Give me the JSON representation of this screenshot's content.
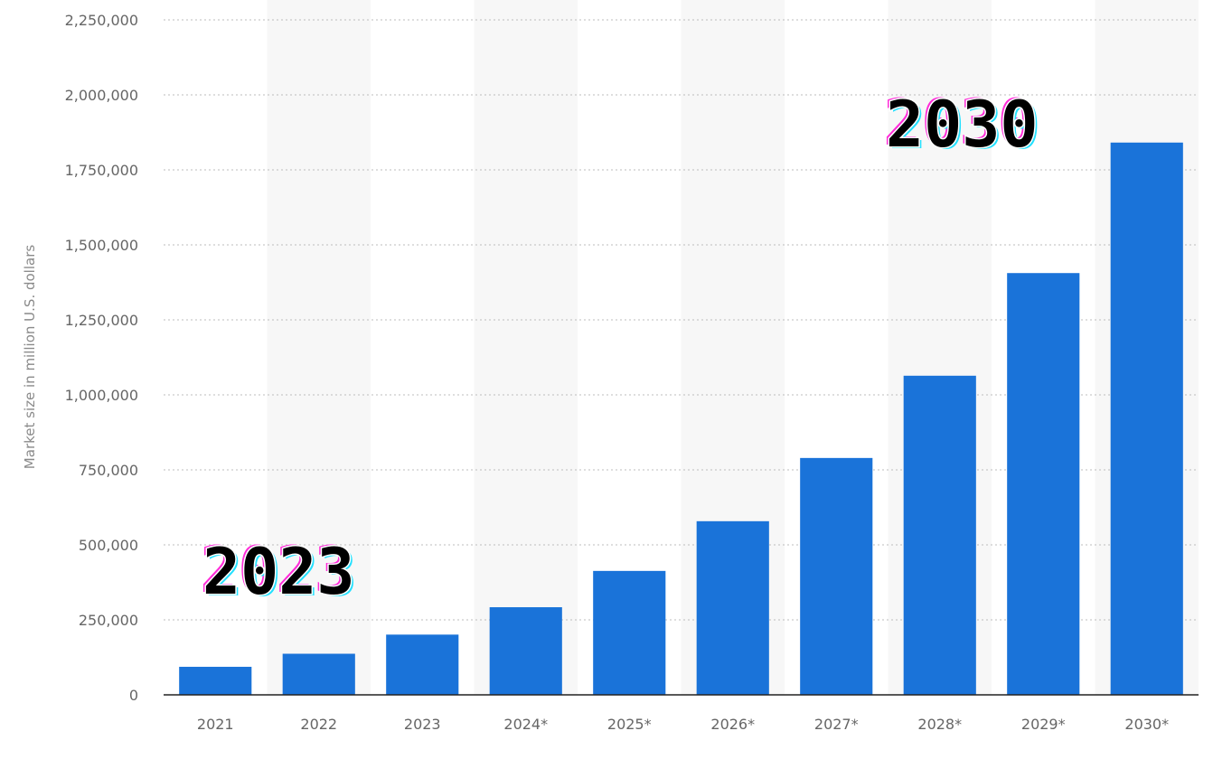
{
  "chart_data": {
    "type": "bar",
    "ylabel": "Market size in million U.S. dollars",
    "xlabel": "",
    "categories": [
      "2021",
      "2022",
      "2023",
      "2024*",
      "2025*",
      "2026*",
      "2027*",
      "2028*",
      "2029*",
      "2030*"
    ],
    "values": [
      93500,
      137000,
      200800,
      292100,
      413100,
      578800,
      789600,
      1063800,
      1406000,
      1841000
    ],
    "ylim": [
      0,
      2250000
    ],
    "yticks": [
      {
        "value": 0,
        "label": "0"
      },
      {
        "value": 250000,
        "label": "250,000"
      },
      {
        "value": 500000,
        "label": "500,000"
      },
      {
        "value": 750000,
        "label": "750,000"
      },
      {
        "value": 1000000,
        "label": "1,000,000"
      },
      {
        "value": 1250000,
        "label": "1,250,000"
      },
      {
        "value": 1500000,
        "label": "1,500,000"
      },
      {
        "value": 1750000,
        "label": "1,750,000"
      },
      {
        "value": 2000000,
        "label": "2,000,000"
      },
      {
        "value": 2250000,
        "label": "2,250,000"
      }
    ],
    "grid": true,
    "bar_color": "#1a73d9",
    "alt_band_color": "#f7f7f7",
    "annotations": [
      {
        "text": "2023",
        "near_category": "2022"
      },
      {
        "text": "2030",
        "near_category": "2029*"
      }
    ]
  }
}
